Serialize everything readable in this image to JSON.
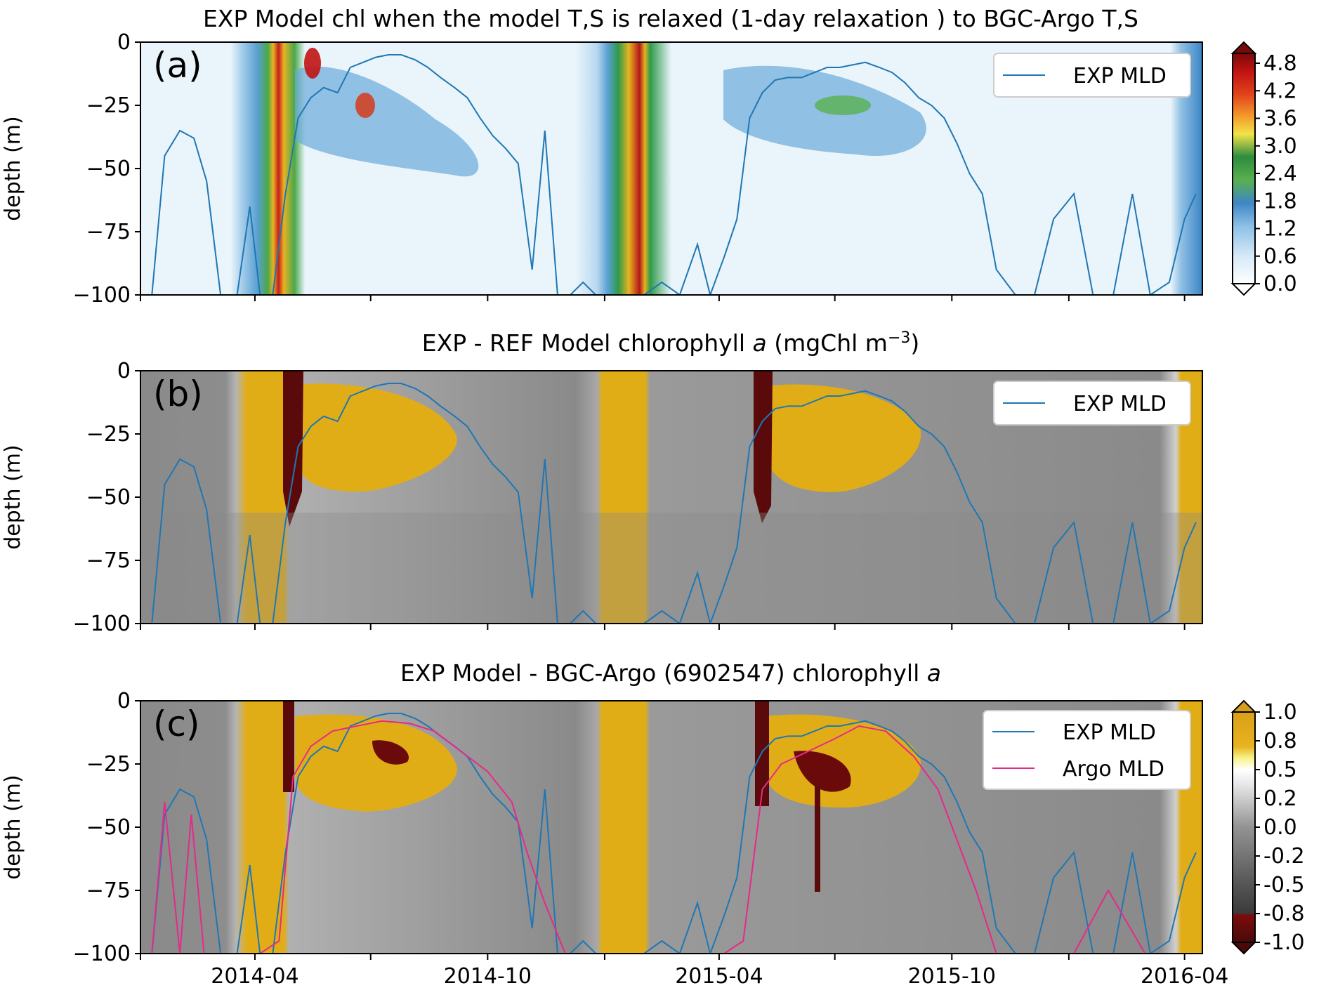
{
  "figure": {
    "panel_a_title": "EXP Model chl when the model T,S is relaxed (1-day relaxation ) to BGC-Argo T,S",
    "panel_b_title_pre": "EXP - REF Model chlorophyll ",
    "panel_b_title_italic": "a",
    "panel_b_title_post": " (mgChl m",
    "panel_b_title_sup": "−3",
    "panel_b_title_close": ")",
    "panel_c_title_pre": "EXP Model - BGC-Argo (6902547) chlorophyll ",
    "panel_c_title_italic": "a",
    "ylabel": "depth (m)",
    "panel_a_tag": "(a)",
    "panel_b_tag": "(b)",
    "panel_c_tag": "(c)",
    "legend_exp": "EXP MLD",
    "legend_argo": "Argo MLD"
  },
  "chart_data": [
    {
      "type": "heatmap",
      "title": "EXP Model chl when the model T,S is relaxed (1-day relaxation ) to BGC-Argo T,S",
      "ylabel": "depth (m)",
      "ylim": [
        -100,
        0
      ],
      "yticks": [
        0,
        -25,
        -50,
        -75,
        -100
      ],
      "ytick_labels": [
        "0",
        "−25",
        "−50",
        "−75",
        "−100"
      ],
      "colorbar_ticks": [
        "4.8",
        "4.2",
        "3.6",
        "3.0",
        "2.4",
        "1.8",
        "1.2",
        "0.6",
        "0.0"
      ],
      "series": [
        {
          "name": "EXP MLD",
          "x": [
            "2014-01-10",
            "2014-01-20",
            "2014-02-01",
            "2014-02-12",
            "2014-02-22",
            "2014-03-05",
            "2014-03-18",
            "2014-03-28",
            "2014-04-05",
            "2014-04-15",
            "2014-04-25",
            "2014-05-05",
            "2014-05-15",
            "2014-05-25",
            "2014-06-05",
            "2014-06-15",
            "2014-06-25",
            "2014-07-05",
            "2014-07-15",
            "2014-07-25",
            "2014-08-05",
            "2014-08-15",
            "2014-08-25",
            "2014-09-05",
            "2014-09-15",
            "2014-09-25",
            "2014-10-05",
            "2014-10-15",
            "2014-10-25",
            "2014-11-05",
            "2014-11-15",
            "2014-11-25",
            "2014-12-05",
            "2014-12-15",
            "2014-12-25",
            "2015-01-10",
            "2015-01-20",
            "2015-02-01",
            "2015-02-15",
            "2015-03-01",
            "2015-03-15",
            "2015-03-25",
            "2015-04-05",
            "2015-04-15",
            "2015-04-25",
            "2015-05-05",
            "2015-05-15",
            "2015-05-25",
            "2015-06-05",
            "2015-06-15",
            "2015-06-25",
            "2015-07-05",
            "2015-07-15",
            "2015-07-25",
            "2015-08-05",
            "2015-08-15",
            "2015-08-25",
            "2015-09-05",
            "2015-09-15",
            "2015-09-25",
            "2015-10-05",
            "2015-10-15",
            "2015-10-25",
            "2015-11-05",
            "2015-11-20",
            "2015-12-05",
            "2015-12-20",
            "2016-01-05",
            "2016-01-20",
            "2016-02-05",
            "2016-02-20",
            "2016-03-05",
            "2016-03-20",
            "2016-04-01",
            "2016-04-10"
          ],
          "y": [
            -100,
            -45,
            -35,
            -38,
            -55,
            -100,
            -100,
            -65,
            -100,
            -100,
            -60,
            -30,
            -22,
            -18,
            -20,
            -10,
            -8,
            -6,
            -5,
            -5,
            -7,
            -10,
            -14,
            -18,
            -22,
            -30,
            -37,
            -42,
            -48,
            -90,
            -35,
            -100,
            -100,
            -95,
            -100,
            -100,
            -100,
            -100,
            -95,
            -100,
            -80,
            -100,
            -85,
            -70,
            -30,
            -20,
            -15,
            -14,
            -14,
            -12,
            -10,
            -10,
            -9,
            -8,
            -10,
            -12,
            -16,
            -22,
            -25,
            -30,
            -40,
            -52,
            -60,
            -90,
            -100,
            -100,
            -70,
            -60,
            -100,
            -100,
            -60,
            -100,
            -95,
            -70,
            -60
          ]
        }
      ]
    },
    {
      "type": "heatmap",
      "title": "EXP - REF Model chlorophyll a (mgChl m−3)",
      "ylabel": "depth (m)",
      "ylim": [
        -100,
        0
      ],
      "yticks": [
        0,
        -25,
        -50,
        -75,
        -100
      ],
      "series": [
        {
          "name": "EXP MLD"
        }
      ]
    },
    {
      "type": "heatmap",
      "title": "EXP Model - BGC-Argo (6902547) chlorophyll a",
      "ylabel": "depth (m)",
      "ylim": [
        -100,
        0
      ],
      "yticks": [
        0,
        -25,
        -50,
        -75,
        -100
      ],
      "x_ticks": [
        "2014-04",
        "2014-10",
        "2015-04",
        "2015-10",
        "2016-04"
      ],
      "colorbar_ticks": [
        "1.0",
        "0.8",
        "0.5",
        "0.2",
        "0.0",
        "-0.2",
        "-0.5",
        "-0.8",
        "-1.0"
      ],
      "series": [
        {
          "name": "EXP MLD"
        },
        {
          "name": "Argo MLD",
          "x": [
            "2014-01-10",
            "2014-01-20",
            "2014-02-01",
            "2014-02-10",
            "2014-02-20",
            "2014-03-01",
            "2014-03-20",
            "2014-04-05",
            "2014-04-20",
            "2014-05-01",
            "2014-05-15",
            "2014-06-01",
            "2014-06-20",
            "2014-07-10",
            "2014-08-01",
            "2014-08-20",
            "2014-09-10",
            "2014-10-01",
            "2014-10-20",
            "2014-11-01",
            "2014-11-15",
            "2014-12-01",
            "2015-01-15",
            "2015-02-15",
            "2015-03-15",
            "2015-04-05",
            "2015-04-20",
            "2015-05-05",
            "2015-05-20",
            "2015-06-10",
            "2015-07-01",
            "2015-07-20",
            "2015-08-10",
            "2015-09-01",
            "2015-09-20",
            "2015-10-05",
            "2015-10-20",
            "2015-11-05",
            "2015-12-01",
            "2016-01-05",
            "2016-02-01",
            "2016-03-01",
            "2016-04-01"
          ],
          "y": [
            -100,
            -40,
            -100,
            -45,
            -100,
            -100,
            -100,
            -100,
            -95,
            -30,
            -18,
            -12,
            -10,
            -8,
            -9,
            -12,
            -20,
            -28,
            -40,
            -60,
            -80,
            -100,
            -100,
            -100,
            -100,
            -100,
            -95,
            -35,
            -25,
            -20,
            -15,
            -10,
            -12,
            -22,
            -35,
            -55,
            -75,
            -100,
            -100,
            -100,
            -75,
            -100,
            -100
          ]
        }
      ]
    }
  ],
  "colors": {
    "exp_line": "#1f77b4",
    "argo_line": "#e7298a"
  }
}
